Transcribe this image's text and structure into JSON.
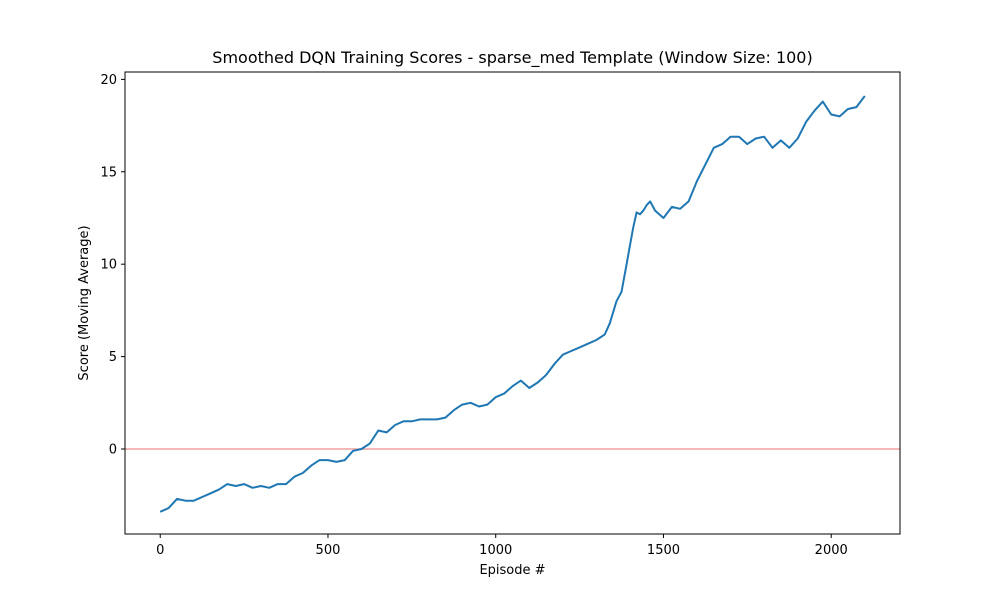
{
  "chart_data": {
    "type": "line",
    "title": "Smoothed DQN Training Scores - sparse_med Template (Window Size: 100)",
    "xlabel": "Episode #",
    "ylabel": "Score (Moving Average)",
    "xlim": [
      -105,
      2205
    ],
    "ylim": [
      -4.6,
      20.4
    ],
    "xticks": [
      0,
      500,
      1000,
      1500,
      2000
    ],
    "yticks": [
      0,
      5,
      10,
      15,
      20
    ],
    "grid": false,
    "legend": "none",
    "colors": {
      "line": "#1f77b4",
      "reference": "#f0a0a0"
    },
    "reference_line": {
      "y": 0
    },
    "series": [
      {
        "x": [
          0,
          25,
          50,
          75,
          100,
          125,
          150,
          175,
          200,
          225,
          250,
          275,
          300,
          325,
          350,
          375,
          400,
          425,
          450,
          475,
          500,
          525,
          550,
          575,
          600,
          625,
          650,
          675,
          700,
          725,
          750,
          775,
          800,
          825,
          850,
          875,
          900,
          925,
          950,
          975,
          1000,
          1025,
          1050,
          1075,
          1100,
          1125,
          1150,
          1175,
          1200,
          1225,
          1250,
          1275,
          1300,
          1325,
          1340,
          1360,
          1375,
          1390,
          1400,
          1410,
          1420,
          1430,
          1440,
          1450,
          1460,
          1475,
          1500,
          1525,
          1550,
          1575,
          1600,
          1625,
          1650,
          1675,
          1700,
          1725,
          1750,
          1775,
          1800,
          1825,
          1850,
          1875,
          1900,
          1925,
          1950,
          1975,
          2000,
          2025,
          2050,
          2075,
          2100
        ],
        "y": [
          -3.4,
          -3.2,
          -2.7,
          -2.8,
          -2.8,
          -2.6,
          -2.4,
          -2.2,
          -1.9,
          -2.0,
          -1.9,
          -2.1,
          -2.0,
          -2.1,
          -1.9,
          -1.9,
          -1.5,
          -1.3,
          -0.9,
          -0.6,
          -0.6,
          -0.7,
          -0.6,
          -0.1,
          0.0,
          0.3,
          1.0,
          0.9,
          1.3,
          1.5,
          1.5,
          1.6,
          1.6,
          1.6,
          1.7,
          2.1,
          2.4,
          2.5,
          2.3,
          2.4,
          2.8,
          3.0,
          3.4,
          3.7,
          3.3,
          3.6,
          4.0,
          4.6,
          5.1,
          5.3,
          5.5,
          5.7,
          5.9,
          6.2,
          6.8,
          8.0,
          8.5,
          10.0,
          11.0,
          12.0,
          12.8,
          12.7,
          12.9,
          13.2,
          13.4,
          12.9,
          12.5,
          13.1,
          13.0,
          13.4,
          14.5,
          15.4,
          16.3,
          16.5,
          16.9,
          16.9,
          16.5,
          16.8,
          16.9,
          16.3,
          16.7,
          16.3,
          16.8,
          17.7,
          18.3,
          18.8,
          18.1,
          18.0,
          18.4,
          18.5,
          19.1
        ]
      }
    ]
  }
}
